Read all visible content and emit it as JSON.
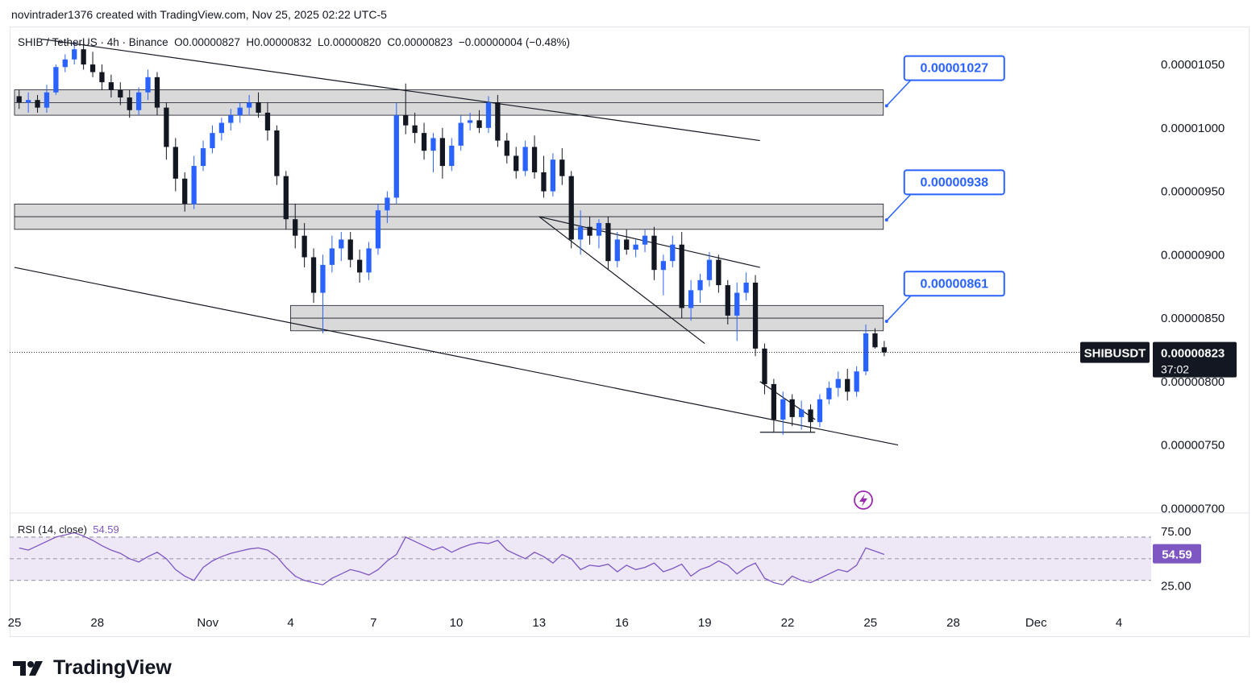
{
  "credit": "novintrader1376 created with TradingView.com, Nov 25, 2025 02:22 UTC-5",
  "symbol_line": "SHIB / TetherUS · 4h · Binance  O0.00000827  H0.00000832  L0.00000820  C0.00000823  −0.00000004 (−0.48%)",
  "rsi": {
    "label": "RSI (14, close)",
    "value_text": "54.59"
  },
  "brand": "TradingView",
  "colors": {
    "up": "#2962ff",
    "down": "#131722",
    "rsi_line": "#7e57c2",
    "rsi_band": "#ede7f6",
    "zone": "#d1d4dc",
    "callout_border": "#2962ff",
    "price_label": "#131722"
  },
  "icons": {
    "logo": "tradingview-logo-icon",
    "lightning": "lightning-icon"
  },
  "chart_data": {
    "type": "candlestick",
    "symbol": "SHIBUSDT",
    "interval": "4h",
    "exchange": "Binance",
    "ohlc": {
      "open": 8.27e-06,
      "high": 8.32e-06,
      "low": 8.2e-06,
      "close": 8.23e-06,
      "change": -4e-08,
      "change_pct": -0.48
    },
    "current_price": "0.00000823",
    "countdown": "37:02",
    "y_axis": {
      "ylim": [
        6.97e-06,
        1.078e-05
      ],
      "ticks": [
        "0.00001050",
        "0.00001000",
        "0.00000950",
        "0.00000900",
        "0.00000850",
        "0.00000800",
        "0.00000750",
        "0.00000700"
      ],
      "tick_values": [
        1.05e-05,
        1e-05,
        9.5e-06,
        9e-06,
        8.5e-06,
        8e-06,
        7.5e-06,
        7e-06
      ]
    },
    "x_axis": {
      "labels": [
        "25",
        "28",
        "Nov",
        "4",
        "7",
        "10",
        "13",
        "16",
        "19",
        "22",
        "25",
        "28",
        "Dec",
        "4"
      ],
      "label_dates": [
        "2025-10-25",
        "2025-10-28",
        "2025-11-01",
        "2025-11-04",
        "2025-11-07",
        "2025-11-10",
        "2025-11-13",
        "2025-11-16",
        "2025-11-19",
        "2025-11-22",
        "2025-11-25",
        "2025-11-28",
        "2025-12-01",
        "2025-12-04"
      ]
    },
    "zones": [
      {
        "price_low": 1.01e-05,
        "price_high": 1.03e-05,
        "mid": 1.02e-05,
        "x_start": "2025-10-25",
        "x_end": "2025-11-25",
        "label": "0.00001027"
      },
      {
        "price_low": 9.2e-06,
        "price_high": 9.4e-06,
        "mid": 9.3e-06,
        "x_start": "2025-10-25",
        "x_end": "2025-11-25",
        "label": "0.00000938"
      },
      {
        "price_low": 8.4e-06,
        "price_high": 8.6e-06,
        "mid": 8.5e-06,
        "x_start": "2025-11-04",
        "x_end": "2025-11-25",
        "label": "0.00000861"
      }
    ],
    "trendlines": [
      {
        "from": [
          "2025-10-26",
          1.07e-05
        ],
        "to": [
          "2025-11-21",
          9.9e-06
        ]
      },
      {
        "from": [
          "2025-10-25",
          8.9e-06
        ],
        "to": [
          "2025-11-26",
          7.5e-06
        ]
      },
      {
        "from": [
          "2025-11-13",
          9.3e-06
        ],
        "to": [
          "2025-11-21",
          8.9e-06
        ]
      },
      {
        "from": [
          "2025-11-13",
          9.3e-06
        ],
        "to": [
          "2025-11-19",
          8.3e-06
        ]
      },
      {
        "from": [
          "2025-11-21",
          8e-06
        ],
        "to": [
          "2025-11-23",
          7.7e-06
        ]
      },
      {
        "from": [
          "2025-11-21",
          7.6e-06
        ],
        "to": [
          "2025-11-23",
          7.6e-06
        ]
      }
    ],
    "candles": [
      [
        "2025-10-25 00:00",
        1.025e-05,
        1.03e-05,
        1.015e-05,
        1.02e-05
      ],
      [
        "2025-10-25 08:00",
        1.02e-05,
        1.028e-05,
        1.012e-05,
        1.022e-05
      ],
      [
        "2025-10-25 16:00",
        1.022e-05,
        1.026e-05,
        1.012e-05,
        1.016e-05
      ],
      [
        "2025-10-26 00:00",
        1.016e-05,
        1.034e-05,
        1.012e-05,
        1.028e-05
      ],
      [
        "2025-10-26 08:00",
        1.028e-05,
        1.05e-05,
        1.026e-05,
        1.048e-05
      ],
      [
        "2025-10-26 16:00",
        1.048e-05,
        1.058e-05,
        1.044e-05,
        1.054e-05
      ],
      [
        "2025-10-27 00:00",
        1.054e-05,
        1.068e-05,
        1.05e-05,
        1.062e-05
      ],
      [
        "2025-10-27 08:00",
        1.062e-05,
        1.066e-05,
        1.046e-05,
        1.05e-05
      ],
      [
        "2025-10-27 16:00",
        1.05e-05,
        1.06e-05,
        1.04e-05,
        1.044e-05
      ],
      [
        "2025-10-28 00:00",
        1.044e-05,
        1.05e-05,
        1.03e-05,
        1.036e-05
      ],
      [
        "2025-10-28 08:00",
        1.036e-05,
        1.042e-05,
        1.024e-05,
        1.03e-05
      ],
      [
        "2025-10-28 16:00",
        1.03e-05,
        1.036e-05,
        1.018e-05,
        1.024e-05
      ],
      [
        "2025-10-29 00:00",
        1.024e-05,
        1.03e-05,
        1.008e-05,
        1.014e-05
      ],
      [
        "2025-10-29 08:00",
        1.014e-05,
        1.032e-05,
        1.01e-05,
        1.028e-05
      ],
      [
        "2025-10-29 16:00",
        1.028e-05,
        1.046e-05,
        1.022e-05,
        1.04e-05
      ],
      [
        "2025-10-30 00:00",
        1.04e-05,
        1.044e-05,
        1.01e-05,
        1.016e-05
      ],
      [
        "2025-10-30 08:00",
        1.016e-05,
        1.02e-05,
        9.75e-06,
        9.85e-06
      ],
      [
        "2025-10-30 16:00",
        9.85e-06,
        9.92e-06,
        9.5e-06,
        9.6e-06
      ],
      [
        "2025-10-31 00:00",
        9.6e-06,
        9.65e-06,
        9.34e-06,
        9.4e-06
      ],
      [
        "2025-10-31 08:00",
        9.4e-06,
        9.78e-06,
        9.36e-06,
        9.7e-06
      ],
      [
        "2025-10-31 16:00",
        9.7e-06,
        9.9e-06,
        9.66e-06,
        9.84e-06
      ],
      [
        "2025-11-01 00:00",
        9.84e-06,
        1.002e-05,
        9.8e-06,
        9.96e-06
      ],
      [
        "2025-11-01 08:00",
        9.96e-06,
        1.008e-05,
        9.9e-06,
        1.004e-05
      ],
      [
        "2025-11-01 16:00",
        1.004e-05,
        1.015e-05,
        9.98e-06,
        1.01e-05
      ],
      [
        "2025-11-02 00:00",
        1.01e-05,
        1.02e-05,
        1.004e-05,
        1.016e-05
      ],
      [
        "2025-11-02 08:00",
        1.016e-05,
        1.026e-05,
        1.01e-05,
        1.02e-05
      ],
      [
        "2025-11-02 16:00",
        1.02e-05,
        1.028e-05,
        1.008e-05,
        1.012e-05
      ],
      [
        "2025-11-03 00:00",
        1.012e-05,
        1.02e-05,
        9.9e-06,
        9.98e-06
      ],
      [
        "2025-11-03 08:00",
        9.98e-06,
        1.002e-05,
        9.55e-06,
        9.62e-06
      ],
      [
        "2025-11-03 16:00",
        9.62e-06,
        9.66e-06,
        9.2e-06,
        9.28e-06
      ],
      [
        "2025-11-04 00:00",
        9.28e-06,
        9.4e-06,
        9.05e-06,
        9.15e-06
      ],
      [
        "2025-11-04 08:00",
        9.15e-06,
        9.25e-06,
        8.9e-06,
        8.98e-06
      ],
      [
        "2025-11-04 16:00",
        8.98e-06,
        9.05e-06,
        8.62e-06,
        8.7e-06
      ],
      [
        "2025-11-05 00:00",
        8.7e-06,
        9e-06,
        8.38e-06,
        8.92e-06
      ],
      [
        "2025-11-05 08:00",
        8.92e-06,
        9.15e-06,
        8.86e-06,
        9.05e-06
      ],
      [
        "2025-11-05 16:00",
        9.05e-06,
        9.18e-06,
        8.95e-06,
        9.12e-06
      ],
      [
        "2025-11-06 00:00",
        9.12e-06,
        9.18e-06,
        8.9e-06,
        8.96e-06
      ],
      [
        "2025-11-06 08:00",
        8.96e-06,
        9.04e-06,
        8.78e-06,
        8.86e-06
      ],
      [
        "2025-11-06 16:00",
        8.86e-06,
        9.1e-06,
        8.8e-06,
        9.05e-06
      ],
      [
        "2025-11-07 00:00",
        9.05e-06,
        9.4e-06,
        9e-06,
        9.35e-06
      ],
      [
        "2025-11-07 08:00",
        9.35e-06,
        9.5e-06,
        9.25e-06,
        9.45e-06
      ],
      [
        "2025-11-07 16:00",
        9.45e-06,
        1.02e-05,
        9.4e-06,
        1.01e-05
      ],
      [
        "2025-11-08 00:00",
        1.01e-05,
        1.035e-05,
        9.95e-06,
        1.002e-05
      ],
      [
        "2025-11-08 08:00",
        1.002e-05,
        1.012e-05,
        9.88e-06,
        9.96e-06
      ],
      [
        "2025-11-08 16:00",
        9.96e-06,
        1.004e-05,
        9.75e-06,
        9.82e-06
      ],
      [
        "2025-11-09 00:00",
        9.82e-06,
        9.96e-06,
        9.65e-06,
        9.92e-06
      ],
      [
        "2025-11-09 08:00",
        9.92e-06,
        1e-05,
        9.6e-06,
        9.7e-06
      ],
      [
        "2025-11-09 16:00",
        9.7e-06,
        9.92e-06,
        9.66e-06,
        9.86e-06
      ],
      [
        "2025-11-10 00:00",
        9.86e-06,
        1.01e-05,
        9.82e-06,
        1.004e-05
      ],
      [
        "2025-11-10 08:00",
        1.004e-05,
        1.012e-05,
        9.98e-06,
        1.006e-05
      ],
      [
        "2025-11-10 16:00",
        1.006e-05,
        1.014e-05,
        9.96e-06,
        1e-05
      ],
      [
        "2025-11-11 00:00",
        1e-05,
        1.025e-05,
        9.96e-06,
        1.02e-05
      ],
      [
        "2025-11-11 08:00",
        1.02e-05,
        1.026e-05,
        9.85e-06,
        9.9e-06
      ],
      [
        "2025-11-11 16:00",
        9.9e-06,
        9.96e-06,
        9.72e-06,
        9.78e-06
      ],
      [
        "2025-11-12 00:00",
        9.78e-06,
        9.85e-06,
        9.6e-06,
        9.66e-06
      ],
      [
        "2025-11-12 08:00",
        9.66e-06,
        9.9e-06,
        9.62e-06,
        9.85e-06
      ],
      [
        "2025-11-12 16:00",
        9.85e-06,
        9.94e-06,
        9.6e-06,
        9.65e-06
      ],
      [
        "2025-11-13 00:00",
        9.65e-06,
        9.78e-06,
        9.45e-06,
        9.5e-06
      ],
      [
        "2025-11-13 08:00",
        9.5e-06,
        9.8e-06,
        9.46e-06,
        9.75e-06
      ],
      [
        "2025-11-13 16:00",
        9.75e-06,
        9.84e-06,
        9.55e-06,
        9.62e-06
      ],
      [
        "2025-11-14 00:00",
        9.62e-06,
        9.66e-06,
        9.05e-06,
        9.12e-06
      ],
      [
        "2025-11-14 08:00",
        9.12e-06,
        9.35e-06,
        9e-06,
        9.22e-06
      ],
      [
        "2025-11-14 16:00",
        9.22e-06,
        9.3e-06,
        9.08e-06,
        9.15e-06
      ],
      [
        "2025-11-15 00:00",
        9.15e-06,
        9.28e-06,
        9.05e-06,
        9.25e-06
      ],
      [
        "2025-11-15 08:00",
        9.25e-06,
        9.3e-06,
        8.88e-06,
        8.95e-06
      ],
      [
        "2025-11-15 16:00",
        8.95e-06,
        9.18e-06,
        8.9e-06,
        9.12e-06
      ],
      [
        "2025-11-16 00:00",
        9.12e-06,
        9.2e-06,
        9e-06,
        9.04e-06
      ],
      [
        "2025-11-16 08:00",
        9.04e-06,
        9.12e-06,
        8.98e-06,
        9.08e-06
      ],
      [
        "2025-11-16 16:00",
        9.08e-06,
        9.2e-06,
        9.02e-06,
        9.15e-06
      ],
      [
        "2025-11-17 00:00",
        9.15e-06,
        9.22e-06,
        8.8e-06,
        8.88e-06
      ],
      [
        "2025-11-17 08:00",
        8.88e-06,
        9e-06,
        8.68e-06,
        8.95e-06
      ],
      [
        "2025-11-17 16:00",
        8.95e-06,
        9.15e-06,
        8.9e-06,
        9.08e-06
      ],
      [
        "2025-11-18 00:00",
        9.08e-06,
        9.18e-06,
        8.5e-06,
        8.58e-06
      ],
      [
        "2025-11-18 08:00",
        8.58e-06,
        8.8e-06,
        8.48e-06,
        8.72e-06
      ],
      [
        "2025-11-18 16:00",
        8.72e-06,
        8.85e-06,
        8.62e-06,
        8.8e-06
      ],
      [
        "2025-11-19 00:00",
        8.8e-06,
        9.02e-06,
        8.75e-06,
        8.96e-06
      ],
      [
        "2025-11-19 08:00",
        8.96e-06,
        9e-06,
        8.7e-06,
        8.76e-06
      ],
      [
        "2025-11-19 16:00",
        8.76e-06,
        8.8e-06,
        8.45e-06,
        8.52e-06
      ],
      [
        "2025-11-20 00:00",
        8.52e-06,
        8.78e-06,
        8.32e-06,
        8.7e-06
      ],
      [
        "2025-11-20 08:00",
        8.7e-06,
        8.86e-06,
        8.64e-06,
        8.78e-06
      ],
      [
        "2025-11-20 16:00",
        8.78e-06,
        8.84e-06,
        8.2e-06,
        8.26e-06
      ],
      [
        "2025-11-21 00:00",
        8.26e-06,
        8.3e-06,
        7.9e-06,
        7.98e-06
      ],
      [
        "2025-11-21 08:00",
        7.98e-06,
        8.02e-06,
        7.6e-06,
        7.7e-06
      ],
      [
        "2025-11-21 16:00",
        7.7e-06,
        7.92e-06,
        7.58e-06,
        7.86e-06
      ],
      [
        "2025-11-22 00:00",
        7.86e-06,
        7.9e-06,
        7.65e-06,
        7.72e-06
      ],
      [
        "2025-11-22 08:00",
        7.72e-06,
        7.85e-06,
        7.62e-06,
        7.78e-06
      ],
      [
        "2025-11-22 16:00",
        7.78e-06,
        7.82e-06,
        7.6e-06,
        7.68e-06
      ],
      [
        "2025-11-23 00:00",
        7.68e-06,
        7.9e-06,
        7.64e-06,
        7.86e-06
      ],
      [
        "2025-11-23 08:00",
        7.86e-06,
        8e-06,
        7.82e-06,
        7.95e-06
      ],
      [
        "2025-11-23 16:00",
        7.95e-06,
        8.08e-06,
        7.88e-06,
        8.02e-06
      ],
      [
        "2025-11-24 00:00",
        8.02e-06,
        8.1e-06,
        7.85e-06,
        7.92e-06
      ],
      [
        "2025-11-24 08:00",
        7.92e-06,
        8.12e-06,
        7.88e-06,
        8.08e-06
      ],
      [
        "2025-11-24 16:00",
        8.08e-06,
        8.45e-06,
        8.05e-06,
        8.38e-06
      ],
      [
        "2025-11-25 00:00",
        8.38e-06,
        8.42e-06,
        8.26e-06,
        8.27e-06
      ],
      [
        "2025-11-25 08:00",
        8.27e-06,
        8.32e-06,
        8.2e-06,
        8.23e-06
      ]
    ],
    "rsi": {
      "name": "RSI (14, close)",
      "last": 54.59,
      "ticks": [
        "75.00",
        "25.00"
      ],
      "tick_values": [
        75,
        25
      ],
      "band": [
        30,
        70
      ],
      "values": [
        60,
        58,
        62,
        66,
        70,
        72,
        74,
        71,
        67,
        62,
        58,
        55,
        50,
        47,
        52,
        56,
        50,
        40,
        34,
        30,
        42,
        48,
        52,
        55,
        57,
        59,
        60,
        58,
        52,
        42,
        34,
        30,
        28,
        26,
        32,
        36,
        40,
        38,
        35,
        40,
        48,
        54,
        70,
        66,
        62,
        58,
        61,
        56,
        60,
        63,
        65,
        64,
        67,
        58,
        54,
        50,
        56,
        52,
        46,
        54,
        50,
        40,
        44,
        43,
        45,
        38,
        44,
        40,
        42,
        46,
        38,
        41,
        45,
        34,
        40,
        43,
        48,
        44,
        36,
        42,
        46,
        32,
        28,
        26,
        34,
        30,
        28,
        32,
        36,
        40,
        38,
        44,
        60,
        57,
        54
      ]
    }
  }
}
